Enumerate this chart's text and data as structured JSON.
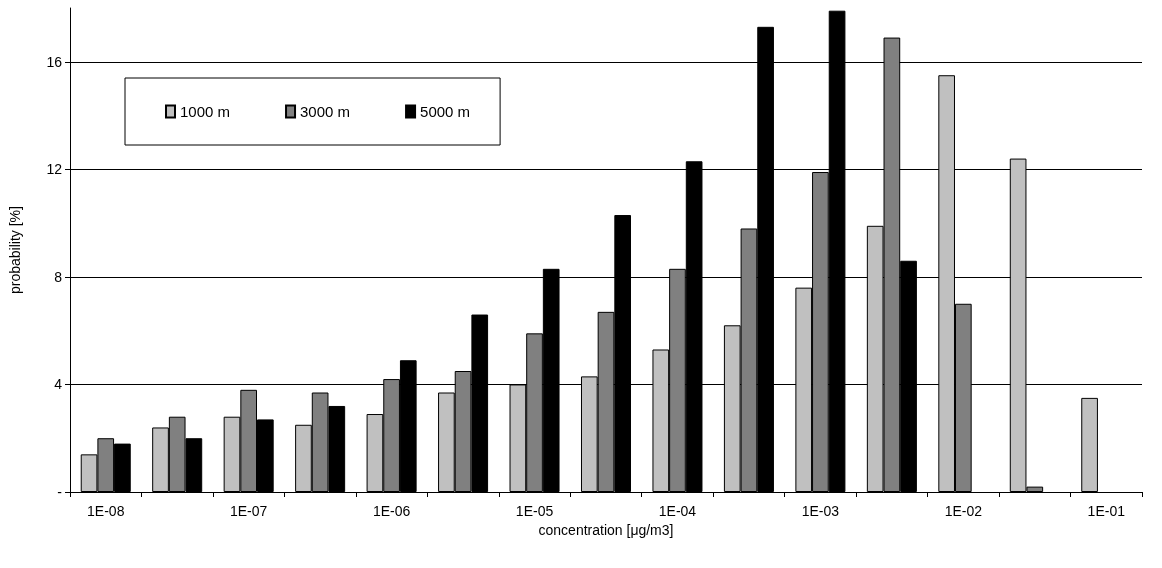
{
  "chart_data": {
    "type": "bar",
    "xlabel": "concentration [μg/m3]",
    "ylabel": "probability [%]",
    "categories": [
      "1E-08",
      null,
      "1E-07",
      null,
      "1E-06",
      null,
      "1E-05",
      null,
      "1E-04",
      null,
      "1E-03",
      null,
      "1E-02",
      null,
      "1E-01"
    ],
    "series": [
      {
        "name": "1000 m",
        "color": "#c0c0c0",
        "values": [
          1.4,
          2.4,
          2.8,
          2.5,
          2.9,
          3.7,
          4.0,
          4.3,
          5.3,
          6.2,
          7.6,
          9.9,
          15.5,
          12.4,
          3.5
        ]
      },
      {
        "name": "3000 m",
        "color": "#808080",
        "values": [
          2.0,
          2.8,
          3.8,
          3.7,
          4.2,
          4.5,
          5.9,
          6.7,
          8.3,
          9.8,
          11.9,
          16.9,
          7.0,
          0.2,
          null
        ]
      },
      {
        "name": "5000 m",
        "color": "#000000",
        "values": [
          1.8,
          2.0,
          2.7,
          3.2,
          4.9,
          6.6,
          8.3,
          10.3,
          12.3,
          17.3,
          17.9,
          8.6,
          null,
          null,
          null
        ]
      }
    ],
    "ylim": [
      0,
      18
    ],
    "yticks": [
      {
        "value": 0,
        "label": "-"
      },
      4,
      8,
      12,
      16
    ],
    "grid": "y",
    "legend": "top left"
  }
}
